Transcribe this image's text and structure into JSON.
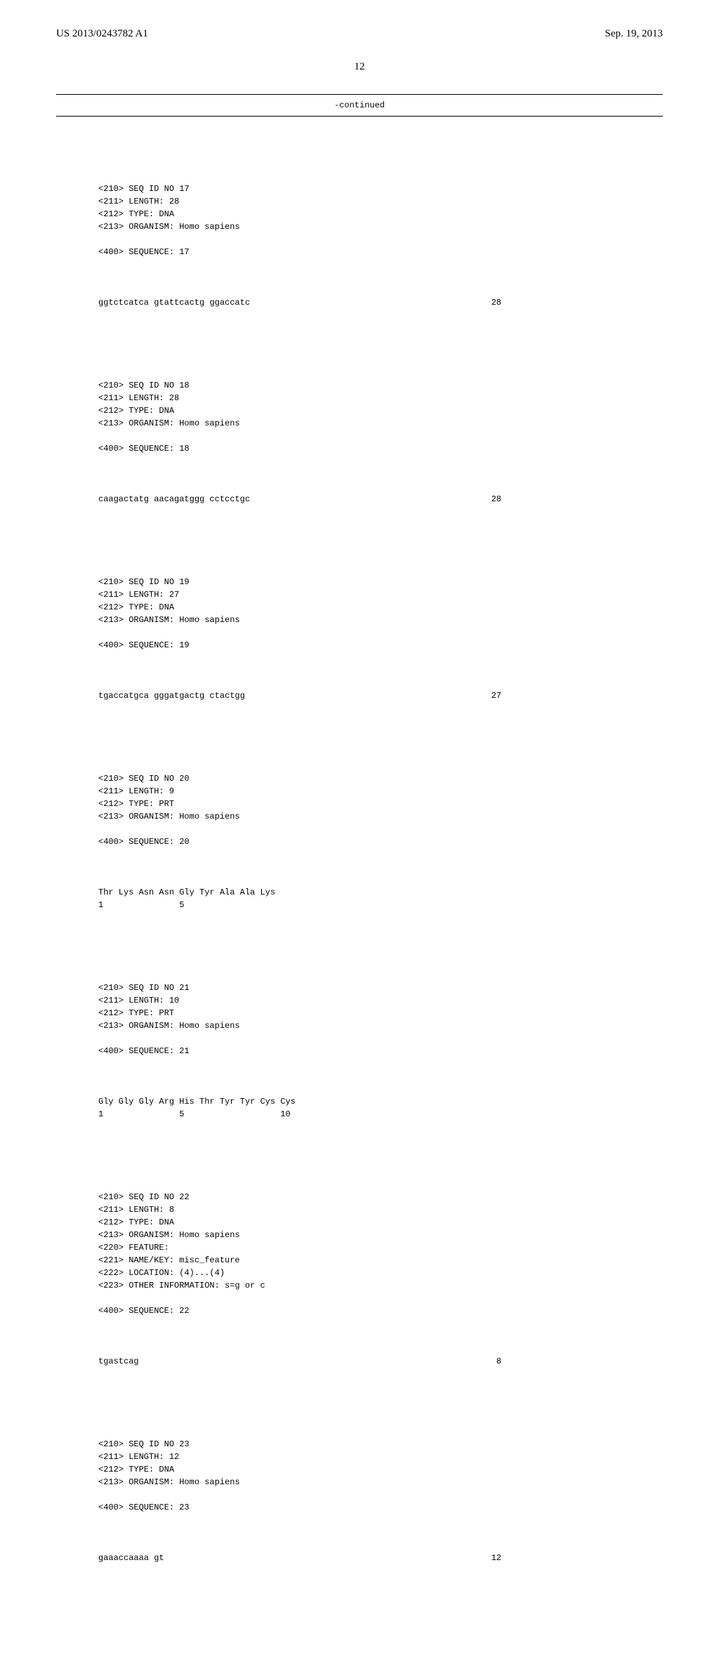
{
  "header": {
    "doc_id": "US 2013/0243782 A1",
    "doc_date": "Sep. 19, 2013"
  },
  "page_number": "12",
  "continued_label": "-continued",
  "sequences": [
    {
      "header": "<210> SEQ ID NO 17\n<211> LENGTH: 28\n<212> TYPE: DNA\n<213> ORGANISM: Homo sapiens\n\n<400> SEQUENCE: 17",
      "data": "ggtctcatca gtattcactg ggaccatc",
      "length": "28"
    },
    {
      "header": "<210> SEQ ID NO 18\n<211> LENGTH: 28\n<212> TYPE: DNA\n<213> ORGANISM: Homo sapiens\n\n<400> SEQUENCE: 18",
      "data": "caagactatg aacagatggg cctcctgc",
      "length": "28"
    },
    {
      "header": "<210> SEQ ID NO 19\n<211> LENGTH: 27\n<212> TYPE: DNA\n<213> ORGANISM: Homo sapiens\n\n<400> SEQUENCE: 19",
      "data": "tgaccatgca gggatgactg ctactgg",
      "length": "27"
    },
    {
      "header": "<210> SEQ ID NO 20\n<211> LENGTH: 9\n<212> TYPE: PRT\n<213> ORGANISM: Homo sapiens\n\n<400> SEQUENCE: 20",
      "data": "Thr Lys Asn Asn Gly Tyr Ala Ala Lys\n1               5",
      "length": ""
    },
    {
      "header": "<210> SEQ ID NO 21\n<211> LENGTH: 10\n<212> TYPE: PRT\n<213> ORGANISM: Homo sapiens\n\n<400> SEQUENCE: 21",
      "data": "Gly Gly Gly Arg His Thr Tyr Tyr Cys Cys\n1               5                   10",
      "length": ""
    },
    {
      "header": "<210> SEQ ID NO 22\n<211> LENGTH: 8\n<212> TYPE: DNA\n<213> ORGANISM: Homo sapiens\n<220> FEATURE:\n<221> NAME/KEY: misc_feature\n<222> LOCATION: (4)...(4)\n<223> OTHER INFORMATION: s=g or c\n\n<400> SEQUENCE: 22",
      "data": "tgastcag",
      "length": "8"
    },
    {
      "header": "<210> SEQ ID NO 23\n<211> LENGTH: 12\n<212> TYPE: DNA\n<213> ORGANISM: Homo sapiens\n\n<400> SEQUENCE: 23",
      "data": "gaaaccaaaa gt",
      "length": "12"
    }
  ]
}
